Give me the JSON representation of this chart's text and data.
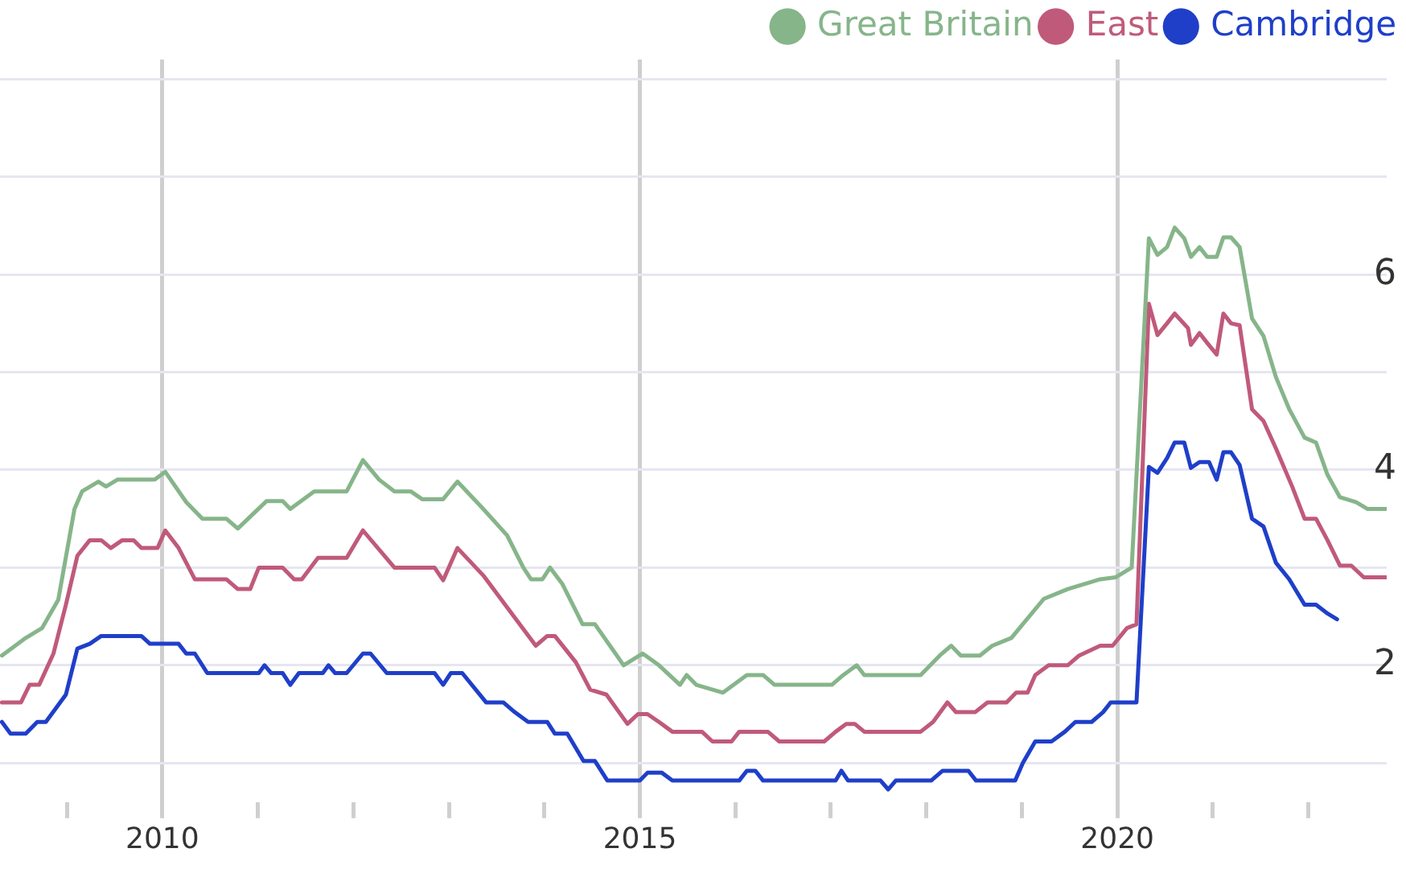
{
  "chart_data": {
    "type": "line",
    "legend": "top right",
    "grid": true,
    "xlim": [
      2008.3,
      2022.82
    ],
    "ylim": [
      0.6,
      8.2
    ],
    "xticks": [
      {
        "value": 2009,
        "label": null
      },
      2010,
      {
        "value": 2011,
        "label": null
      },
      {
        "value": 2012,
        "label": null
      },
      {
        "value": 2013,
        "label": null
      },
      {
        "value": 2014,
        "label": null
      },
      2015,
      {
        "value": 2016,
        "label": null
      },
      {
        "value": 2017,
        "label": null
      },
      {
        "value": 2018,
        "label": null
      },
      {
        "value": 2019,
        "label": null
      },
      2020,
      {
        "value": 2021,
        "label": null
      },
      {
        "value": 2022,
        "label": null
      }
    ],
    "yticks": [
      {
        "value": 1,
        "label": null
      },
      2,
      {
        "value": 3,
        "label": null
      },
      4,
      {
        "value": 5,
        "label": null
      },
      6,
      {
        "value": 7,
        "label": null
      },
      {
        "value": 8,
        "label": null
      }
    ],
    "series": [
      {
        "name": "Great Britain",
        "color": "#86b58a",
        "x": [
          2008.32,
          2008.57,
          2008.74,
          2008.91,
          2009.08,
          2009.16,
          2009.33,
          2009.41,
          2009.53,
          2009.92,
          2010.03,
          2010.25,
          2010.42,
          2010.67,
          2010.79,
          2011.09,
          2011.26,
          2011.34,
          2011.59,
          2011.93,
          2012.1,
          2012.27,
          2012.43,
          2012.6,
          2012.72,
          2012.94,
          2013.09,
          2013.36,
          2013.61,
          2013.78,
          2013.86,
          2013.98,
          2014.06,
          2014.19,
          2014.4,
          2014.53,
          2014.83,
          2015.03,
          2015.2,
          2015.42,
          2015.49,
          2015.59,
          2015.87,
          2016.12,
          2016.29,
          2016.41,
          2017.01,
          2017.13,
          2017.27,
          2017.35,
          2017.94,
          2018.14,
          2018.26,
          2018.36,
          2018.56,
          2018.69,
          2018.89,
          2019.23,
          2019.48,
          2019.82,
          2019.98,
          2020.15,
          2020.33,
          2020.42,
          2020.52,
          2020.6,
          2020.7,
          2020.77,
          2020.86,
          2020.94,
          2021.04,
          2021.11,
          2021.19,
          2021.28,
          2021.41,
          2021.53,
          2021.66,
          2021.8,
          2021.96,
          2022.08,
          2022.2,
          2022.33,
          2022.5,
          2022.62,
          2022.82
        ],
        "values": [
          2.1,
          2.28,
          2.38,
          2.67,
          3.6,
          3.78,
          3.88,
          3.83,
          3.9,
          3.9,
          3.98,
          3.67,
          3.5,
          3.5,
          3.4,
          3.68,
          3.68,
          3.6,
          3.78,
          3.78,
          4.1,
          3.9,
          3.78,
          3.78,
          3.7,
          3.7,
          3.88,
          3.6,
          3.33,
          3.0,
          2.88,
          2.88,
          3.0,
          2.83,
          2.42,
          2.42,
          2.0,
          2.12,
          2.0,
          1.8,
          1.9,
          1.8,
          1.72,
          1.9,
          1.9,
          1.8,
          1.8,
          1.9,
          2.0,
          1.9,
          1.9,
          2.1,
          2.2,
          2.1,
          2.1,
          2.2,
          2.28,
          2.68,
          2.78,
          2.88,
          2.9,
          3.0,
          6.37,
          6.2,
          6.28,
          6.48,
          6.37,
          6.18,
          6.28,
          6.18,
          6.18,
          6.38,
          6.38,
          6.28,
          5.55,
          5.37,
          4.95,
          4.62,
          4.33,
          4.28,
          3.95,
          3.72,
          3.67,
          3.6,
          3.6
        ]
      },
      {
        "name": "East",
        "color": "#c05a7a",
        "x": [
          2008.32,
          2008.52,
          2008.61,
          2008.71,
          2008.86,
          2008.99,
          2009.11,
          2009.24,
          2009.36,
          2009.46,
          2009.58,
          2009.7,
          2009.78,
          2009.95,
          2010.03,
          2010.17,
          2010.34,
          2010.67,
          2010.79,
          2010.92,
          2011.01,
          2011.26,
          2011.38,
          2011.46,
          2011.63,
          2011.93,
          2012.1,
          2012.43,
          2012.85,
          2012.94,
          2013.09,
          2013.36,
          2013.91,
          2014.03,
          2014.11,
          2014.33,
          2014.48,
          2014.65,
          2014.87,
          2014.98,
          2015.08,
          2015.2,
          2015.34,
          2015.65,
          2015.76,
          2015.96,
          2016.04,
          2016.34,
          2016.46,
          2016.93,
          2017.05,
          2017.16,
          2017.25,
          2017.35,
          2017.94,
          2018.07,
          2018.22,
          2018.31,
          2018.51,
          2018.64,
          2018.84,
          2018.94,
          2019.06,
          2019.14,
          2019.28,
          2019.48,
          2019.6,
          2019.82,
          2019.95,
          2020.1,
          2020.2,
          2020.33,
          2020.42,
          2020.52,
          2020.6,
          2020.74,
          2020.77,
          2020.86,
          2020.94,
          2021.04,
          2021.11,
          2021.19,
          2021.28,
          2021.41,
          2021.53,
          2021.66,
          2021.83,
          2021.96,
          2022.08,
          2022.2,
          2022.33,
          2022.45,
          2022.58,
          2022.82
        ],
        "values": [
          1.62,
          1.62,
          1.8,
          1.8,
          2.12,
          2.62,
          3.12,
          3.28,
          3.28,
          3.2,
          3.28,
          3.28,
          3.2,
          3.2,
          3.38,
          3.2,
          2.88,
          2.88,
          2.78,
          2.78,
          3.0,
          3.0,
          2.88,
          2.88,
          3.1,
          3.1,
          3.38,
          3.0,
          3.0,
          2.87,
          3.2,
          2.92,
          2.2,
          2.3,
          2.3,
          2.03,
          1.75,
          1.7,
          1.4,
          1.5,
          1.5,
          1.42,
          1.32,
          1.32,
          1.22,
          1.22,
          1.32,
          1.32,
          1.22,
          1.22,
          1.32,
          1.4,
          1.4,
          1.32,
          1.32,
          1.42,
          1.62,
          1.52,
          1.52,
          1.62,
          1.62,
          1.72,
          1.72,
          1.9,
          2.0,
          2.0,
          2.1,
          2.2,
          2.2,
          2.38,
          2.42,
          5.7,
          5.38,
          5.5,
          5.6,
          5.45,
          5.28,
          5.4,
          5.3,
          5.18,
          5.6,
          5.5,
          5.48,
          4.62,
          4.5,
          4.22,
          3.83,
          3.5,
          3.5,
          3.28,
          3.02,
          3.02,
          2.9,
          2.9
        ]
      },
      {
        "name": "Cambridge",
        "color": "#1f3fc9",
        "x": [
          2008.32,
          2008.41,
          2008.57,
          2008.69,
          2008.78,
          2008.99,
          2009.11,
          2009.24,
          2009.36,
          2009.78,
          2009.87,
          2010.17,
          2010.25,
          2010.34,
          2010.47,
          2011.01,
          2011.07,
          2011.14,
          2011.26,
          2011.34,
          2011.43,
          2011.68,
          2011.74,
          2011.81,
          2011.93,
          2012.1,
          2012.18,
          2012.35,
          2012.85,
          2012.94,
          2013.02,
          2013.14,
          2013.39,
          2013.57,
          2013.69,
          2013.83,
          2014.03,
          2014.11,
          2014.24,
          2014.41,
          2014.53,
          2014.66,
          2015.0,
          2015.08,
          2015.23,
          2015.34,
          2016.04,
          2016.12,
          2016.21,
          2016.29,
          2017.05,
          2017.11,
          2017.18,
          2017.52,
          2017.6,
          2017.68,
          2018.05,
          2018.17,
          2018.44,
          2018.52,
          2018.93,
          2019.01,
          2019.14,
          2019.31,
          2019.45,
          2019.56,
          2019.73,
          2019.85,
          2019.93,
          2020.18,
          2020.2,
          2020.33,
          2020.42,
          2020.52,
          2020.6,
          2020.7,
          2020.77,
          2020.86,
          2020.96,
          2021.04,
          2021.11,
          2021.19,
          2021.28,
          2021.41,
          2021.53,
          2021.66,
          2021.8,
          2021.96,
          2022.08,
          2022.2,
          2022.3
        ],
        "values": [
          1.42,
          1.3,
          1.3,
          1.42,
          1.42,
          1.7,
          2.17,
          2.22,
          2.3,
          2.3,
          2.22,
          2.22,
          2.12,
          2.12,
          1.92,
          1.92,
          2.0,
          1.92,
          1.92,
          1.8,
          1.92,
          1.92,
          2.0,
          1.92,
          1.92,
          2.12,
          2.12,
          1.92,
          1.92,
          1.8,
          1.92,
          1.92,
          1.62,
          1.62,
          1.52,
          1.42,
          1.42,
          1.3,
          1.3,
          1.02,
          1.02,
          0.82,
          0.82,
          0.9,
          0.9,
          0.82,
          0.82,
          0.92,
          0.92,
          0.82,
          0.82,
          0.92,
          0.82,
          0.82,
          0.73,
          0.82,
          0.82,
          0.92,
          0.92,
          0.82,
          0.82,
          1.0,
          1.22,
          1.22,
          1.32,
          1.42,
          1.42,
          1.52,
          1.62,
          1.62,
          1.62,
          4.03,
          3.97,
          4.12,
          4.28,
          4.28,
          4.02,
          4.08,
          4.08,
          3.9,
          4.18,
          4.18,
          4.05,
          3.5,
          3.42,
          3.05,
          2.88,
          2.62,
          2.62,
          2.53,
          2.47
        ]
      }
    ]
  }
}
